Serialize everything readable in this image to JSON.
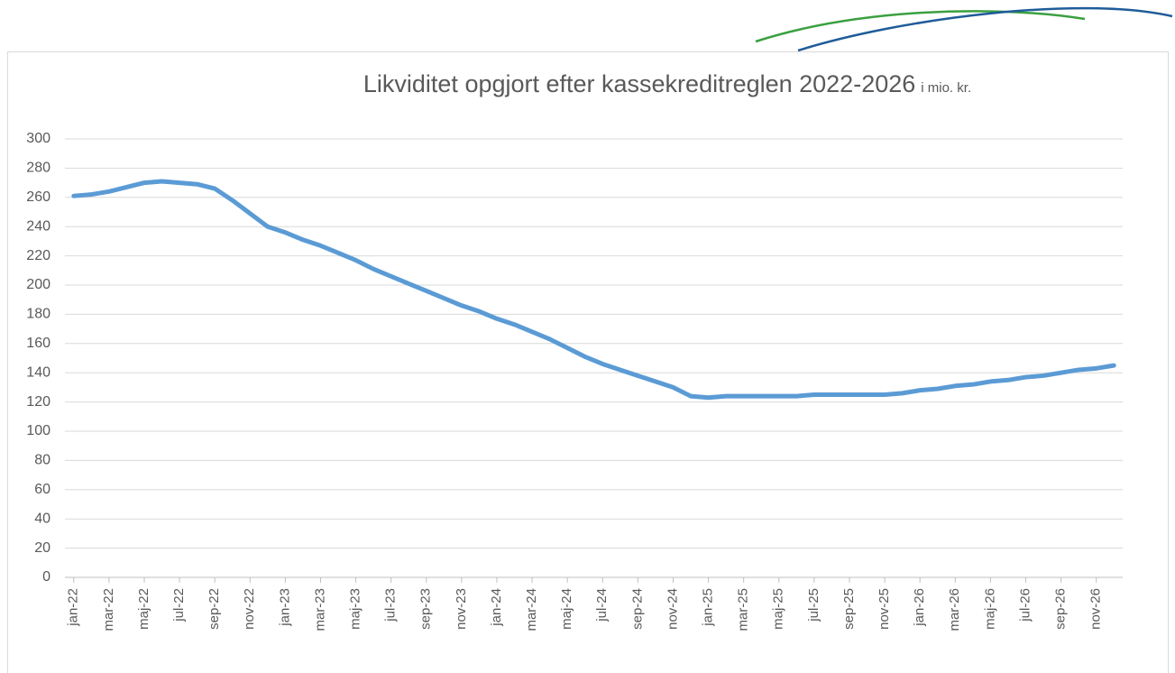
{
  "chart_data": {
    "type": "line",
    "title": "Likviditet opgjort efter kassekreditreglen 2022-2026",
    "subtitle": "i mio. kr.",
    "categories": [
      "jan-22",
      null,
      "mar-22",
      null,
      "maj-22",
      null,
      "jul-22",
      null,
      "sep-22",
      null,
      "nov-22",
      null,
      "jan-23",
      null,
      "mar-23",
      null,
      "maj-23",
      null,
      "jul-23",
      null,
      "sep-23",
      null,
      "nov-23",
      null,
      "jan-24",
      null,
      "mar-24",
      null,
      "maj-24",
      null,
      "jul-24",
      null,
      "sep-24",
      null,
      "nov-24",
      null,
      "jan-25",
      null,
      "mar-25",
      null,
      "maj-25",
      null,
      "jul-25",
      null,
      "sep-25",
      null,
      "nov-25",
      null,
      "jan-26",
      null,
      "mar-26",
      null,
      "maj-26",
      null,
      "jul-26",
      null,
      "sep-26",
      null,
      "nov-26",
      null
    ],
    "series": [
      {
        "name": "Likviditet",
        "color": "#5b9bd5",
        "values": [
          261,
          262,
          264,
          267,
          270,
          271,
          270,
          269,
          266,
          258,
          249,
          240,
          236,
          231,
          227,
          222,
          217,
          211,
          206,
          201,
          196,
          191,
          186,
          182,
          177,
          173,
          168,
          163,
          157,
          151,
          146,
          142,
          138,
          134,
          130,
          124,
          123,
          124,
          124,
          124,
          124,
          124,
          125,
          125,
          125,
          125,
          125,
          126,
          128,
          129,
          131,
          132,
          134,
          135,
          137,
          138,
          140,
          142,
          143,
          145
        ]
      }
    ],
    "ylim": [
      0,
      300
    ],
    "yticks": [
      0,
      20,
      40,
      60,
      80,
      100,
      120,
      140,
      160,
      180,
      200,
      220,
      240,
      260,
      280,
      300
    ],
    "grid": true
  }
}
